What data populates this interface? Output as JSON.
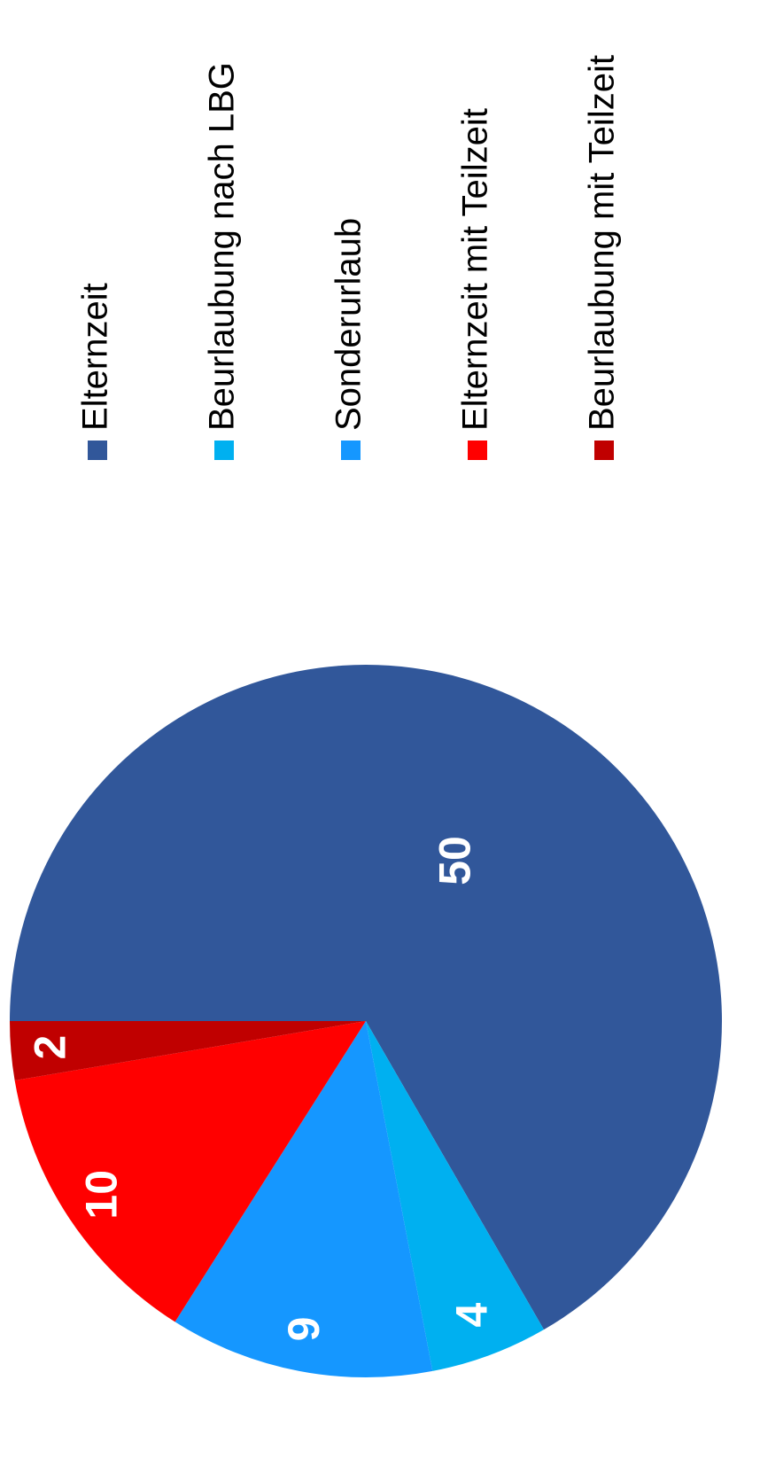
{
  "chart_data": {
    "type": "pie",
    "categories": [
      "Elternzeit",
      "Beurlaubung nach LBG",
      "Sonderurlaub",
      "Elternzeit mit Teilzeit",
      "Beurlaubung mit Teilzeit"
    ],
    "values": [
      50,
      4,
      9,
      10,
      2
    ],
    "colors": [
      "#31579a",
      "#00b0f0",
      "#1597ff",
      "#ff0000",
      "#c00000"
    ],
    "legend": "right"
  }
}
